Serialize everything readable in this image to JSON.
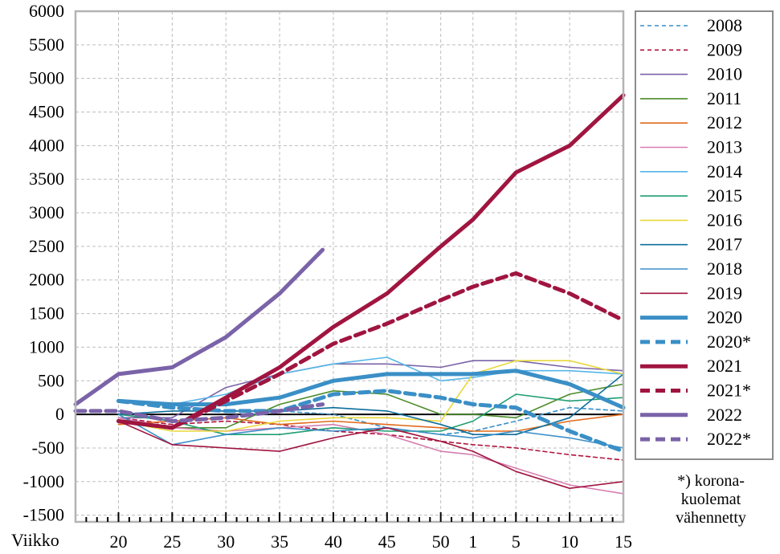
{
  "chart_data": {
    "type": "line",
    "xlabel": "Viikko",
    "ylim": [
      -1600,
      6000
    ],
    "yticks": [
      6000,
      5500,
      5000,
      4500,
      4000,
      3500,
      3000,
      2500,
      2000,
      1500,
      1000,
      500,
      0,
      -500,
      -1000,
      -1500
    ],
    "x_ticks": [
      "20",
      "25",
      "30",
      "35",
      "40",
      "45",
      "50",
      "1",
      "5",
      "10",
      "15"
    ],
    "x_note": "week sequence runs from week 16 through week 52 and continues with weeks 1-15 of the following year",
    "grid": true,
    "legend_position": "right",
    "footnote": [
      "*) korona-",
      "kuolemat",
      "vähennetty"
    ],
    "series": [
      {
        "name": "2008",
        "color": "#3a8fc6",
        "style": "dashed",
        "width": "thin",
        "x": [
          "20",
          "25",
          "30",
          "35",
          "40",
          "45",
          "50",
          "1",
          "5",
          "10",
          "15"
        ],
        "y": [
          50,
          -100,
          -50,
          50,
          0,
          -200,
          -300,
          -250,
          -100,
          100,
          50
        ]
      },
      {
        "name": "2009",
        "color": "#b0123a",
        "style": "dashed",
        "width": "thin",
        "x": [
          "20",
          "25",
          "30",
          "35",
          "40",
          "45",
          "50",
          "1",
          "5",
          "10",
          "15"
        ],
        "y": [
          -50,
          -150,
          -100,
          -150,
          -250,
          -300,
          -400,
          -450,
          -500,
          -600,
          -680
        ]
      },
      {
        "name": "2010",
        "color": "#7a63a8",
        "style": "solid",
        "width": "thin",
        "x": [
          "20",
          "25",
          "30",
          "35",
          "40",
          "45",
          "50",
          "1",
          "5",
          "10",
          "15"
        ],
        "y": [
          -50,
          -50,
          400,
          600,
          750,
          750,
          700,
          800,
          800,
          700,
          650
        ]
      },
      {
        "name": "2011",
        "color": "#4c8c2b",
        "style": "solid",
        "width": "thin",
        "x": [
          "20",
          "25",
          "30",
          "35",
          "40",
          "45",
          "50",
          "1",
          "5",
          "10",
          "15"
        ],
        "y": [
          -100,
          -200,
          -200,
          150,
          350,
          300,
          0,
          0,
          -50,
          300,
          450
        ]
      },
      {
        "name": "2012",
        "color": "#e06a1a",
        "style": "solid",
        "width": "thin",
        "x": [
          "20",
          "25",
          "30",
          "35",
          "40",
          "45",
          "50",
          "1",
          "5",
          "10",
          "15"
        ],
        "y": [
          -150,
          -100,
          -50,
          -150,
          -100,
          -150,
          -200,
          -250,
          -250,
          -100,
          0
        ]
      },
      {
        "name": "2013",
        "color": "#d67fb0",
        "style": "solid",
        "width": "thin",
        "x": [
          "20",
          "25",
          "30",
          "35",
          "40",
          "45",
          "50",
          "1",
          "5",
          "10",
          "15"
        ],
        "y": [
          -50,
          -200,
          -250,
          -200,
          -150,
          -300,
          -550,
          -600,
          -800,
          -1050,
          -1180
        ]
      },
      {
        "name": "2014",
        "color": "#56b6e8",
        "style": "solid",
        "width": "thin",
        "x": [
          "20",
          "25",
          "30",
          "35",
          "40",
          "45",
          "50",
          "1",
          "5",
          "10",
          "15"
        ],
        "y": [
          200,
          150,
          300,
          600,
          750,
          850,
          500,
          550,
          650,
          650,
          600
        ]
      },
      {
        "name": "2015",
        "color": "#1f9e73",
        "style": "solid",
        "width": "thin",
        "x": [
          "20",
          "25",
          "30",
          "35",
          "40",
          "45",
          "50",
          "1",
          "5",
          "10",
          "15"
        ],
        "y": [
          0,
          -100,
          -300,
          -300,
          -200,
          -250,
          -250,
          -100,
          300,
          200,
          250
        ]
      },
      {
        "name": "2016",
        "color": "#e8d83a",
        "style": "solid",
        "width": "thin",
        "x": [
          "20",
          "25",
          "30",
          "35",
          "40",
          "45",
          "50",
          "1",
          "5",
          "10",
          "15"
        ],
        "y": [
          -100,
          -250,
          -250,
          -100,
          -50,
          -50,
          -100,
          600,
          800,
          800,
          600
        ]
      },
      {
        "name": "2017",
        "color": "#0d6e9c",
        "style": "solid",
        "width": "thin",
        "x": [
          "20",
          "25",
          "30",
          "35",
          "40",
          "45",
          "50",
          "1",
          "5",
          "10",
          "15"
        ],
        "y": [
          0,
          50,
          50,
          50,
          100,
          50,
          -150,
          -300,
          -300,
          -50,
          600
        ]
      },
      {
        "name": "2018",
        "color": "#3d8fc9",
        "style": "solid",
        "width": "thin",
        "x": [
          "20",
          "25",
          "30",
          "35",
          "40",
          "45",
          "50",
          "1",
          "5",
          "10",
          "15"
        ],
        "y": [
          0,
          -450,
          -300,
          -200,
          -250,
          -200,
          -300,
          -350,
          -250,
          -350,
          -500
        ]
      },
      {
        "name": "2019",
        "color": "#a01540",
        "style": "solid",
        "width": "thin",
        "x": [
          "20",
          "25",
          "30",
          "35",
          "40",
          "45",
          "50",
          "1",
          "5",
          "10",
          "15"
        ],
        "y": [
          -100,
          -450,
          -500,
          -550,
          -350,
          -200,
          -400,
          -550,
          -850,
          -1100,
          -1000
        ]
      },
      {
        "name": "2020",
        "color": "#3a8fc6",
        "style": "solid",
        "width": "thick",
        "x": [
          "20",
          "25",
          "30",
          "35",
          "40",
          "45",
          "50",
          "1",
          "5",
          "10",
          "15"
        ],
        "y": [
          200,
          150,
          150,
          250,
          500,
          600,
          600,
          600,
          650,
          450,
          100
        ]
      },
      {
        "name": "2020*",
        "color": "#3a8fc6",
        "style": "dashed",
        "width": "thick",
        "x": [
          "20",
          "25",
          "30",
          "35",
          "40",
          "45",
          "50",
          "1",
          "5",
          "10",
          "15"
        ],
        "y": [
          200,
          100,
          50,
          50,
          300,
          350,
          250,
          150,
          100,
          -250,
          -550
        ]
      },
      {
        "name": "2021",
        "color": "#a01540",
        "style": "solid",
        "width": "thick",
        "x": [
          "20",
          "25",
          "30",
          "35",
          "40",
          "45",
          "50",
          "1",
          "5",
          "10",
          "15"
        ],
        "y": [
          -100,
          -200,
          250,
          700,
          1300,
          1800,
          2500,
          2900,
          3600,
          4000,
          4750
        ]
      },
      {
        "name": "2021*",
        "color": "#a01540",
        "style": "dashed",
        "width": "thick",
        "x": [
          "20",
          "25",
          "30",
          "35",
          "40",
          "45",
          "50",
          "1",
          "5",
          "10",
          "15"
        ],
        "y": [
          -100,
          -200,
          200,
          600,
          1050,
          1350,
          1700,
          1900,
          2100,
          1800,
          1400
        ]
      },
      {
        "name": "2022",
        "color": "#7a63a8",
        "style": "solid",
        "width": "thick",
        "x": [
          "16",
          "20",
          "25",
          "30",
          "35",
          "39"
        ],
        "y": [
          150,
          600,
          700,
          1150,
          1800,
          2450
        ]
      },
      {
        "name": "2022*",
        "color": "#7a63a8",
        "style": "dashed",
        "width": "thick",
        "x": [
          "16",
          "20",
          "25",
          "30",
          "35",
          "39"
        ],
        "y": [
          50,
          50,
          -100,
          -50,
          50,
          150
        ]
      }
    ]
  }
}
